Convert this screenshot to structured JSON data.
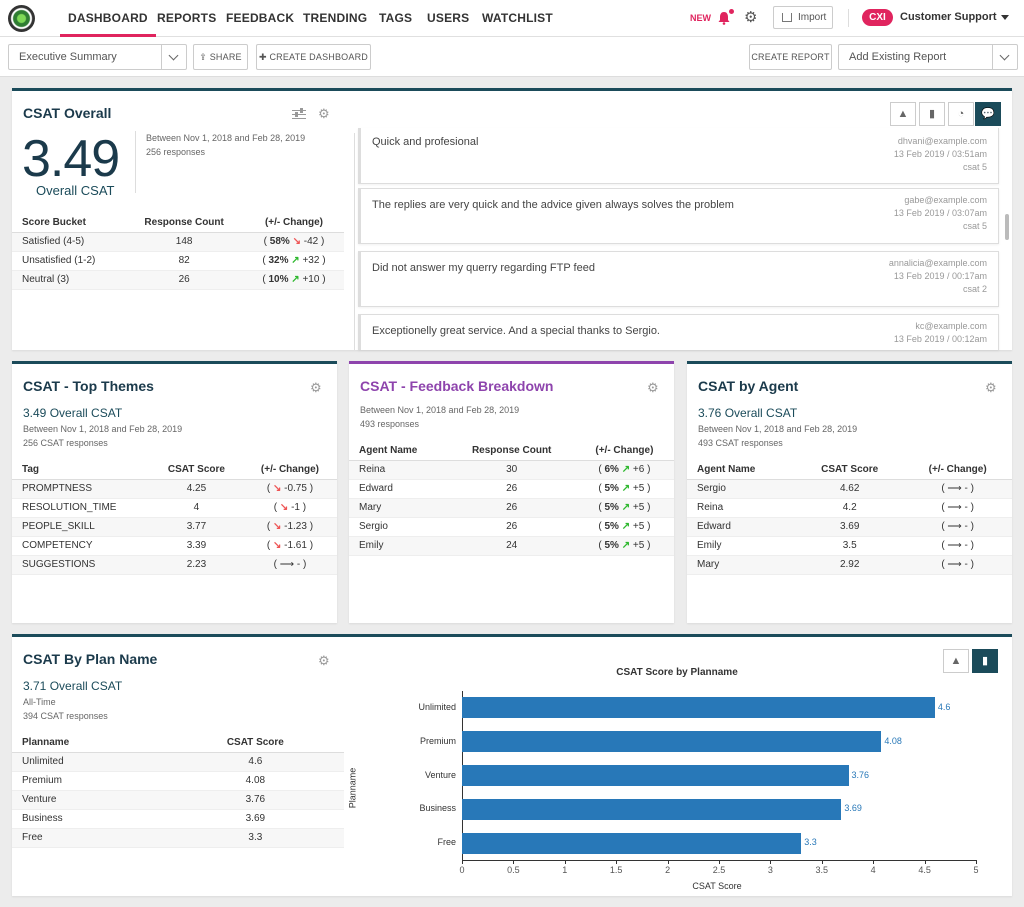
{
  "nav": {
    "tabs": [
      "DASHBOARD",
      "REPORTS",
      "FEEDBACK",
      "TRENDING",
      "TAGS",
      "USERS",
      "WATCHLIST"
    ],
    "new_label": "NEW",
    "import_label": "Import",
    "org_badge": "CXI",
    "org_name": "Customer Support"
  },
  "toolbar": {
    "dashboard_select": "Executive Summary",
    "share_label": "SHARE",
    "create_dashboard_label": "CREATE DASHBOARD",
    "create_report_label": "CREATE REPORT",
    "add_report_placeholder": "Add Existing Report"
  },
  "csat_overall": {
    "title": "CSAT Overall",
    "score": "3.49",
    "score_label": "Overall CSAT",
    "date_range": "Between Nov 1, 2018 and Feb 28, 2019",
    "responses": "256 responses",
    "headers": [
      "Score Bucket",
      "Response Count",
      "(+/- Change)"
    ],
    "rows": [
      {
        "bucket": "Satisfied (4-5)",
        "count": "148",
        "pct": "58%",
        "dir": "down",
        "change": "-42"
      },
      {
        "bucket": "Unsatisfied (1-2)",
        "count": "82",
        "pct": "32%",
        "dir": "up",
        "change": "+32"
      },
      {
        "bucket": "Neutral (3)",
        "count": "26",
        "pct": "10%",
        "dir": "up",
        "change": "+10"
      }
    ],
    "feedback": [
      {
        "text": "Quick and profesional",
        "email": "dhvani@example.com",
        "date": "13 Feb 2019 / 03:51am",
        "score": "csat 5"
      },
      {
        "text": "The replies are very quick and the advice given always solves the problem",
        "email": "gabe@example.com",
        "date": "13 Feb 2019 / 03:07am",
        "score": "csat 5"
      },
      {
        "text": "Did not answer my querry regarding FTP feed",
        "email": "annalicia@example.com",
        "date": "13 Feb 2019 / 00:17am",
        "score": "csat 2"
      },
      {
        "text": "Exceptionelly great service. And a special thanks to Sergio.",
        "email": "kc@example.com",
        "date": "13 Feb 2019 / 00:12am",
        "score": ""
      }
    ]
  },
  "top_themes": {
    "title": "CSAT - Top Themes",
    "metric": "3.49  Overall CSAT",
    "date_range": "Between Nov 1, 2018 and Feb 28, 2019",
    "responses": "256 CSAT responses",
    "headers": [
      "Tag",
      "CSAT Score",
      "(+/- Change)"
    ],
    "rows": [
      {
        "tag": "PROMPTNESS",
        "score": "4.25",
        "dir": "down",
        "change": "-0.75"
      },
      {
        "tag": "RESOLUTION_TIME",
        "score": "4",
        "dir": "down",
        "change": "-1"
      },
      {
        "tag": "PEOPLE_SKILL",
        "score": "3.77",
        "dir": "down",
        "change": "-1.23"
      },
      {
        "tag": "COMPETENCY",
        "score": "3.39",
        "dir": "down",
        "change": "-1.61"
      },
      {
        "tag": "SUGGESTIONS",
        "score": "2.23",
        "dir": "flat",
        "change": "-"
      }
    ]
  },
  "feedback_breakdown": {
    "title": "CSAT - Feedback Breakdown",
    "date_range": "Between Nov 1, 2018 and Feb 28, 2019",
    "responses": "493 responses",
    "headers": [
      "Agent Name",
      "Response Count",
      "(+/- Change)"
    ],
    "rows": [
      {
        "agent": "Reina",
        "count": "30",
        "pct": "6%",
        "change": "+6"
      },
      {
        "agent": "Edward",
        "count": "26",
        "pct": "5%",
        "change": "+5"
      },
      {
        "agent": "Mary",
        "count": "26",
        "pct": "5%",
        "change": "+5"
      },
      {
        "agent": "Sergio",
        "count": "26",
        "pct": "5%",
        "change": "+5"
      },
      {
        "agent": "Emily",
        "count": "24",
        "pct": "5%",
        "change": "+5"
      }
    ]
  },
  "by_agent": {
    "title": "CSAT by Agent",
    "metric": "3.76  Overall CSAT",
    "date_range": "Between Nov 1, 2018 and Feb 28, 2019",
    "responses": "493 CSAT responses",
    "headers": [
      "Agent Name",
      "CSAT Score",
      "(+/- Change)"
    ],
    "rows": [
      {
        "agent": "Sergio",
        "score": "4.62",
        "change": "-"
      },
      {
        "agent": "Reina",
        "score": "4.2",
        "change": "-"
      },
      {
        "agent": "Edward",
        "score": "3.69",
        "change": "-"
      },
      {
        "agent": "Emily",
        "score": "3.5",
        "change": "-"
      },
      {
        "agent": "Mary",
        "score": "2.92",
        "change": "-"
      }
    ]
  },
  "by_plan": {
    "title": "CSAT By Plan Name",
    "metric": "3.71  Overall CSAT",
    "period": "All-Time",
    "responses": "394 CSAT responses",
    "headers": [
      "Planname",
      "CSAT Score"
    ],
    "rows": [
      {
        "plan": "Unlimited",
        "score": "4.6"
      },
      {
        "plan": "Premium",
        "score": "4.08"
      },
      {
        "plan": "Venture",
        "score": "3.76"
      },
      {
        "plan": "Business",
        "score": "3.69"
      },
      {
        "plan": "Free",
        "score": "3.3"
      }
    ]
  },
  "chart_data": {
    "type": "bar",
    "orientation": "horizontal",
    "title": "CSAT Score by Planname",
    "categories": [
      "Unlimited",
      "Premium",
      "Venture",
      "Business",
      "Free"
    ],
    "values": [
      4.6,
      4.08,
      3.76,
      3.69,
      3.3
    ],
    "xlabel": "CSAT Score",
    "ylabel": "Planname",
    "xlim": [
      0,
      5
    ],
    "xticks": [
      "0",
      "0.5",
      "1",
      "1.5",
      "2",
      "2.5",
      "3",
      "3.5",
      "4",
      "4.5",
      "5"
    ],
    "color": "#2878b8"
  },
  "colors": {
    "accent": "#e0245e",
    "primary": "#1b4b5a",
    "purple": "#8e44ad",
    "up": "#2eb82e",
    "down": "#e55555"
  }
}
